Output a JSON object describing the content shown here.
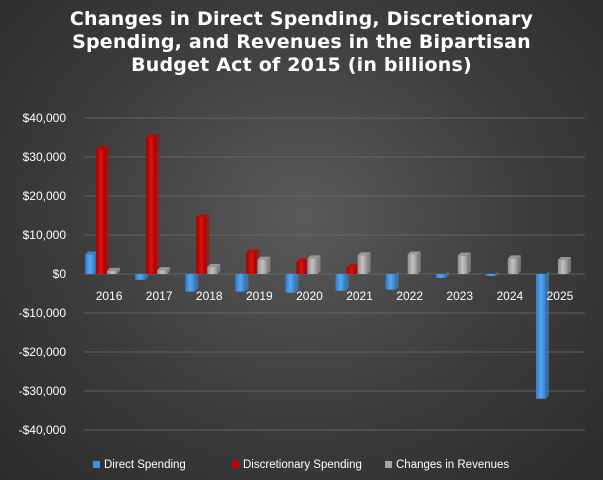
{
  "chart_data": {
    "type": "bar",
    "title_lines": [
      "Changes in Direct Spending, Discretionary",
      "Spending, and Revenues in the Bipartisan",
      "Budget Act of 2015 (in billions)"
    ],
    "categories": [
      "2016",
      "2017",
      "2018",
      "2019",
      "2020",
      "2021",
      "2022",
      "2023",
      "2024",
      "2025"
    ],
    "series": [
      {
        "name": "Direct Spending",
        "color": "#3f8fdc",
        "values": [
          5000,
          -1500,
          -4500,
          -4500,
          -4800,
          -4300,
          -4000,
          -1000,
          -500,
          -32000
        ]
      },
      {
        "name": "Discretionary Spending",
        "color": "#c80000",
        "values": [
          32000,
          35000,
          14500,
          5500,
          3200,
          1700,
          0,
          0,
          0,
          0
        ]
      },
      {
        "name": "Changes in Revenues",
        "color": "#a6a6a6",
        "values": [
          800,
          1000,
          1800,
          3700,
          4000,
          4800,
          5000,
          4700,
          4000,
          3600
        ]
      }
    ],
    "y_ticks": [
      40000,
      30000,
      20000,
      10000,
      0,
      -10000,
      -20000,
      -30000,
      -40000
    ],
    "y_tick_labels": [
      "$40,000",
      "$30,000",
      "$20,000",
      "$10,000",
      "$0",
      "-$10,000",
      "-$20,000",
      "-$30,000",
      "-$40,000"
    ],
    "ylim": [
      -40000,
      40000
    ],
    "xlabel": "",
    "ylabel": "",
    "grid": true,
    "legend_position": "bottom"
  }
}
